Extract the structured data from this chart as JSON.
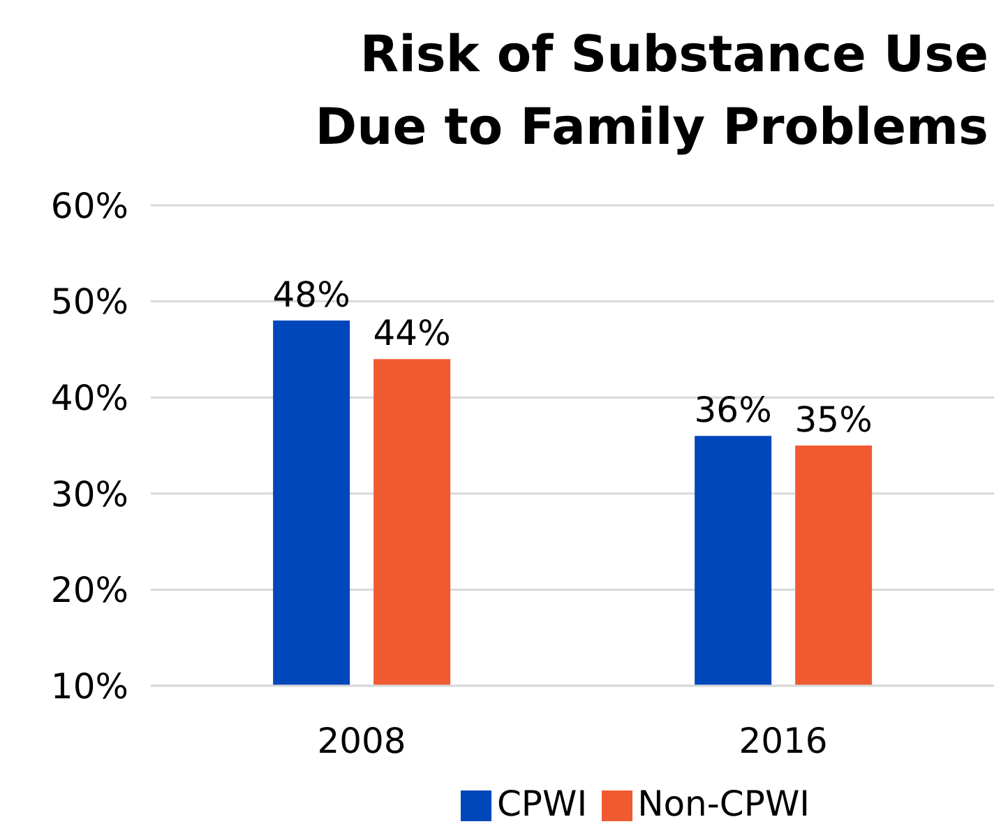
{
  "chart_data": {
    "type": "bar",
    "title": "Risk of Substance Use\nDue to Family Problems",
    "categories": [
      "2008",
      "2016"
    ],
    "series": [
      {
        "name": "CPWI",
        "color": "#0047bb",
        "values": [
          48,
          36
        ],
        "value_labels": [
          "48%",
          "36%"
        ]
      },
      {
        "name": "Non-CPWI",
        "color": "#f05a30",
        "values": [
          44,
          35
        ],
        "value_labels": [
          "44%",
          "35%"
        ]
      }
    ],
    "ylim": [
      10,
      60
    ],
    "yticks": [
      {
        "value": 10,
        "label": "10%"
      },
      {
        "value": 20,
        "label": "20%"
      },
      {
        "value": 30,
        "label": "30%"
      },
      {
        "value": 40,
        "label": "40%"
      },
      {
        "value": 50,
        "label": "50%"
      },
      {
        "value": 60,
        "label": "60%"
      }
    ],
    "grid": "y",
    "legend": "bottom"
  }
}
